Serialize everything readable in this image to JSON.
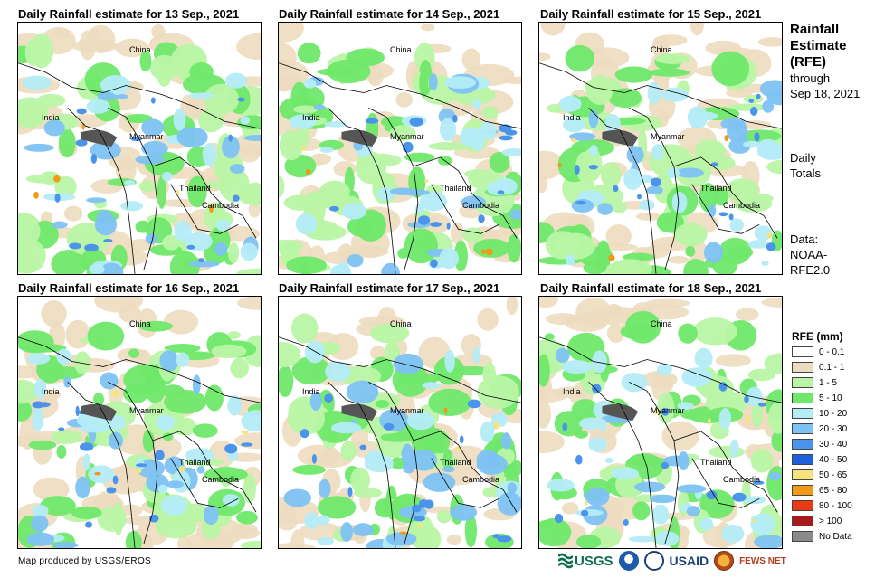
{
  "panels": [
    {
      "title": "Daily Rainfall estimate for 13 Sep., 2021",
      "labels": {
        "china": "China",
        "india": "India",
        "myanmar": "Myanmar",
        "thailand": "Thailand",
        "cambodia": "Cambodia"
      }
    },
    {
      "title": "Daily Rainfall estimate for 14 Sep., 2021",
      "labels": {
        "china": "China",
        "india": "India",
        "myanmar": "Myanmar",
        "thailand": "Thailand",
        "cambodia": "Cambodia"
      }
    },
    {
      "title": "Daily Rainfall estimate for 15 Sep., 2021",
      "labels": {
        "china": "China",
        "india": "India",
        "myanmar": "Myanmar",
        "thailand": "Thailand",
        "cambodia": "Cambodia"
      }
    },
    {
      "title": "Daily Rainfall estimate for 16 Sep., 2021",
      "labels": {
        "china": "China",
        "india": "India",
        "myanmar": "Myanmar",
        "thailand": "Thailand",
        "cambodia": "Cambodia"
      }
    },
    {
      "title": "Daily Rainfall estimate for 17 Sep., 2021",
      "labels": {
        "china": "China",
        "india": "India",
        "myanmar": "Myanmar",
        "thailand": "Thailand",
        "cambodia": "Cambodia"
      }
    },
    {
      "title": "Daily Rainfall estimate for 18 Sep., 2021",
      "labels": {
        "china": "China",
        "india": "India",
        "myanmar": "Myanmar",
        "thailand": "Thailand",
        "cambodia": "Cambodia"
      }
    }
  ],
  "side": {
    "title_line1": "Rainfall",
    "title_line2": "Estimate",
    "title_line3": "(RFE)",
    "through": "through",
    "date": "Sep 18, 2021",
    "daily": "Daily",
    "totals": "Totals",
    "data_label": "Data:",
    "source_line1": "NOAA-",
    "source_line2": "RFE2.0"
  },
  "legend": {
    "title": "RFE (mm)",
    "items": [
      {
        "label": "0 - 0.1",
        "color": "#ffffff"
      },
      {
        "label": "0.1 - 1",
        "color": "#ecdcbf"
      },
      {
        "label": "1 - 5",
        "color": "#b9f5a5"
      },
      {
        "label": "5 - 10",
        "color": "#6fe86a"
      },
      {
        "label": "10 - 20",
        "color": "#b4ecf8"
      },
      {
        "label": "20 - 30",
        "color": "#7ec2f3"
      },
      {
        "label": "30 - 40",
        "color": "#4a95eb"
      },
      {
        "label": "40 - 50",
        "color": "#1f5fdc"
      },
      {
        "label": "50 - 65",
        "color": "#f8e27c"
      },
      {
        "label": "65 - 80",
        "color": "#f09a18"
      },
      {
        "label": "80 - 100",
        "color": "#ec3a12"
      },
      {
        "label": "> 100",
        "color": "#a51b1b"
      },
      {
        "label": "No Data",
        "color": "#8a8a8a"
      }
    ]
  },
  "footer": "Map produced by USGS/EROS",
  "logos": {
    "usgs": "USGS",
    "usaid": "USAID",
    "fewsnet": "FEWS NET"
  }
}
